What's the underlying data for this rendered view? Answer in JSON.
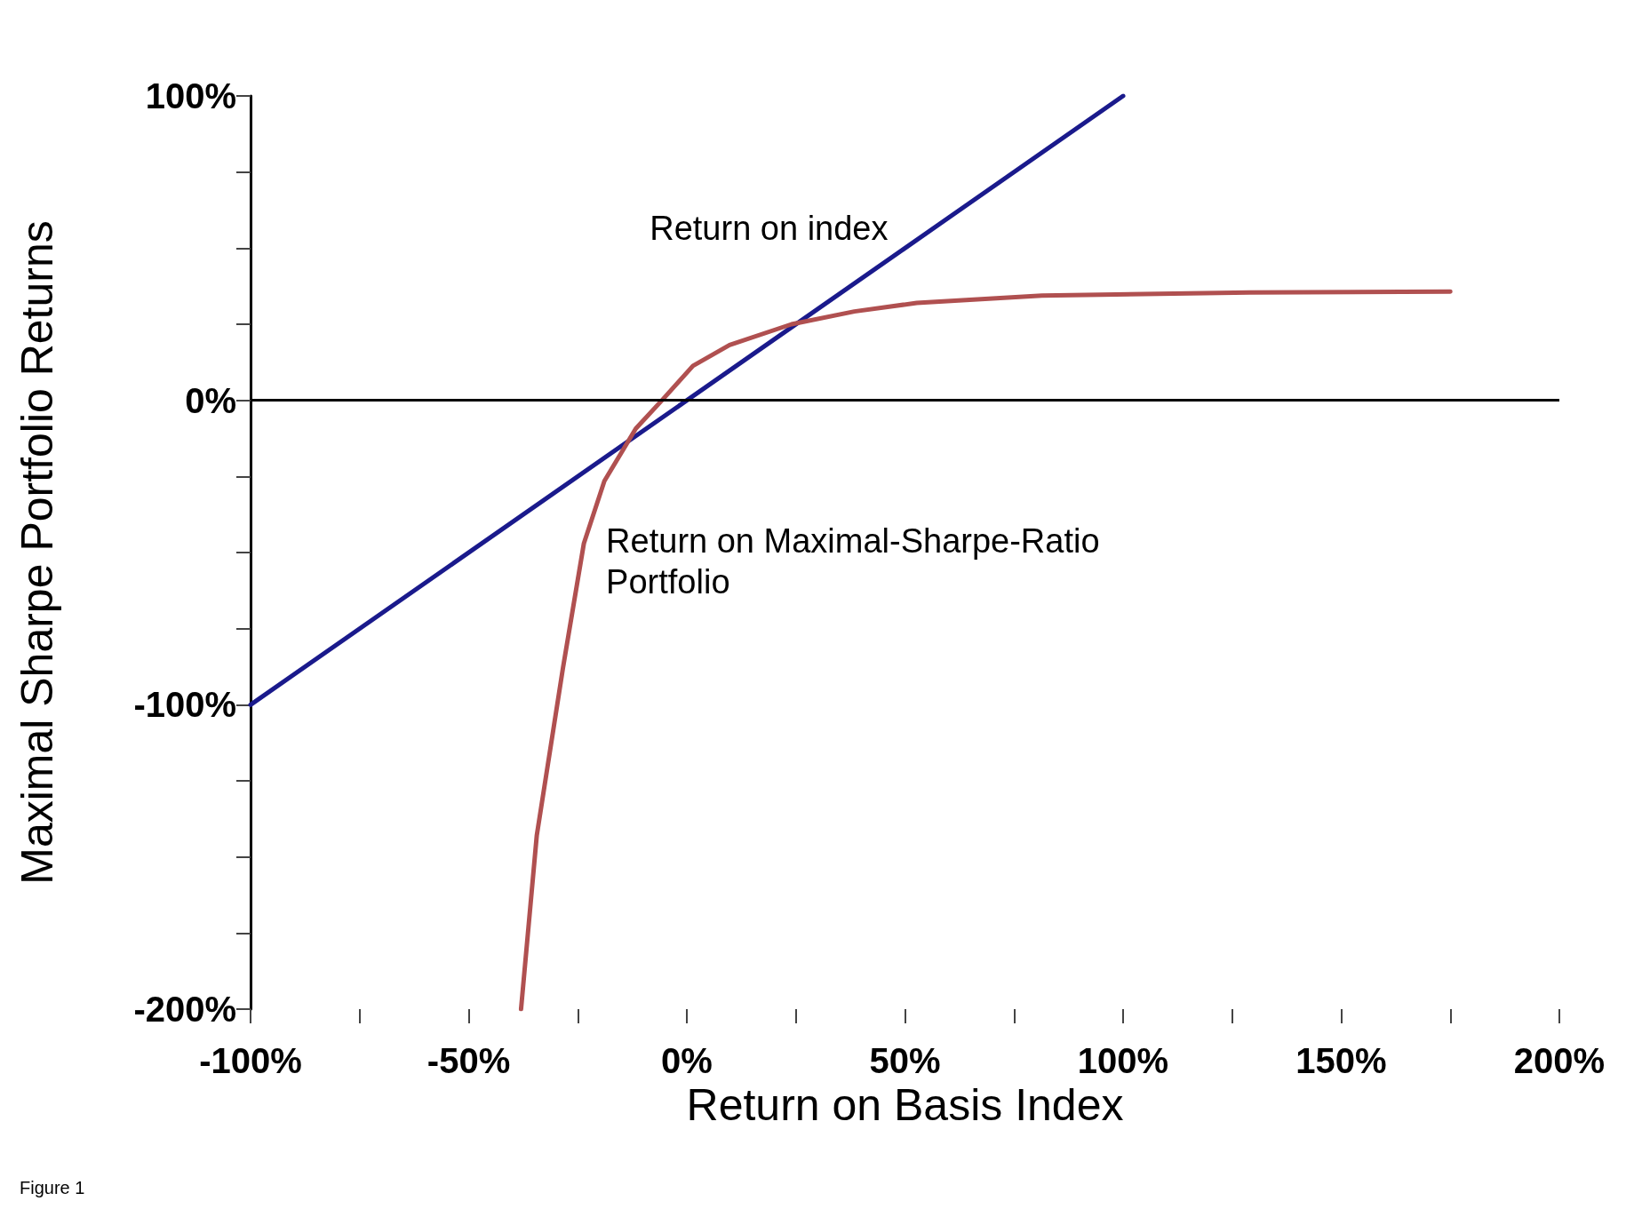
{
  "chart_data": {
    "type": "line",
    "xlabel": "Return on Basis Index",
    "ylabel": "Maximal Sharpe Portfolio Returns",
    "xlim": [
      -100,
      200
    ],
    "ylim": [
      -200,
      100
    ],
    "xticks": [
      {
        "value": -100,
        "label": "-100%"
      },
      {
        "value": -75,
        "label": null
      },
      {
        "value": -50,
        "label": "-50%"
      },
      {
        "value": -25,
        "label": null
      },
      {
        "value": 0,
        "label": "0%"
      },
      {
        "value": 25,
        "label": null
      },
      {
        "value": 50,
        "label": "50%"
      },
      {
        "value": 75,
        "label": null
      },
      {
        "value": 100,
        "label": "100%"
      },
      {
        "value": 125,
        "label": null
      },
      {
        "value": 150,
        "label": "150%"
      },
      {
        "value": 175,
        "label": null
      },
      {
        "value": 200,
        "label": "200%"
      }
    ],
    "yticks": [
      {
        "value": -200,
        "label": "-200%"
      },
      {
        "value": -175,
        "label": null
      },
      {
        "value": -150,
        "label": null
      },
      {
        "value": -125,
        "label": null
      },
      {
        "value": -100,
        "label": "-100%"
      },
      {
        "value": -75,
        "label": null
      },
      {
        "value": -50,
        "label": null
      },
      {
        "value": -25,
        "label": null
      },
      {
        "value": 0,
        "label": "0%"
      },
      {
        "value": 25,
        "label": null
      },
      {
        "value": 50,
        "label": null
      },
      {
        "value": 75,
        "label": null
      },
      {
        "value": 100,
        "label": "100%"
      }
    ],
    "grid": false,
    "legend": false,
    "marker": "none",
    "line_style": "solid",
    "ref_lines": [
      {
        "axis": "y",
        "value": 0,
        "color": "#000000"
      }
    ],
    "series": [
      {
        "name": "Return on index",
        "color": "#1a1a8c",
        "x": [
          -100,
          50,
          100
        ],
        "values": [
          -100,
          50,
          100
        ]
      },
      {
        "name": "Return on Maximal-Sharpe-Ratio Portfolio",
        "color": "#b05050",
        "x": [
          -38,
          -34.4,
          -28.4,
          -23.6,
          -18.9,
          -11.7,
          -5.7,
          1.4,
          9.8,
          24,
          38.4,
          52.7,
          81.4,
          129,
          175
        ],
        "values": [
          -200,
          -143,
          -88,
          -47,
          -26.5,
          -9.3,
          0,
          11.3,
          18.2,
          25,
          29.2,
          32,
          34.4,
          35.4,
          35.7
        ]
      }
    ],
    "annotations": [
      "Figure 1"
    ]
  }
}
